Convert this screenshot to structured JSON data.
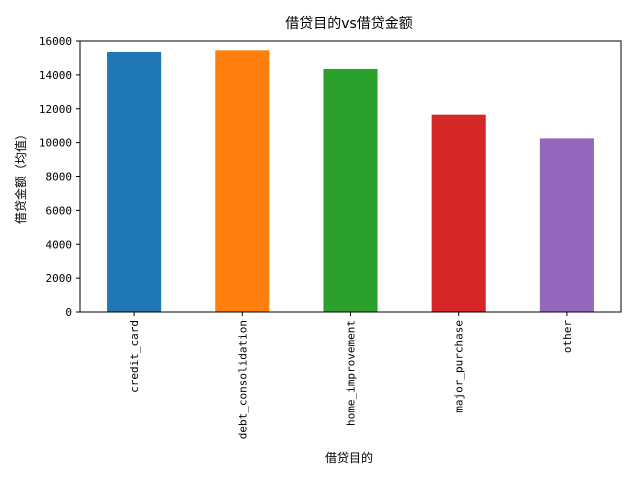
{
  "chart_data": {
    "type": "bar",
    "title": "借贷目的vs借贷金额",
    "xlabel": "借贷目的",
    "ylabel": "借贷金额（均值）",
    "categories": [
      "credit_card",
      "debt_consolidation",
      "home_improvement",
      "major_purchase",
      "other"
    ],
    "values": [
      15350,
      15450,
      14350,
      11650,
      10250
    ],
    "colors": [
      "#1f77b4",
      "#ff7f0e",
      "#2ca02c",
      "#d62728",
      "#9467bd"
    ],
    "ylim": [
      0,
      16000
    ],
    "yticks": [
      0,
      2000,
      4000,
      6000,
      8000,
      10000,
      12000,
      14000,
      16000
    ],
    "grid": false,
    "legend": "none"
  }
}
